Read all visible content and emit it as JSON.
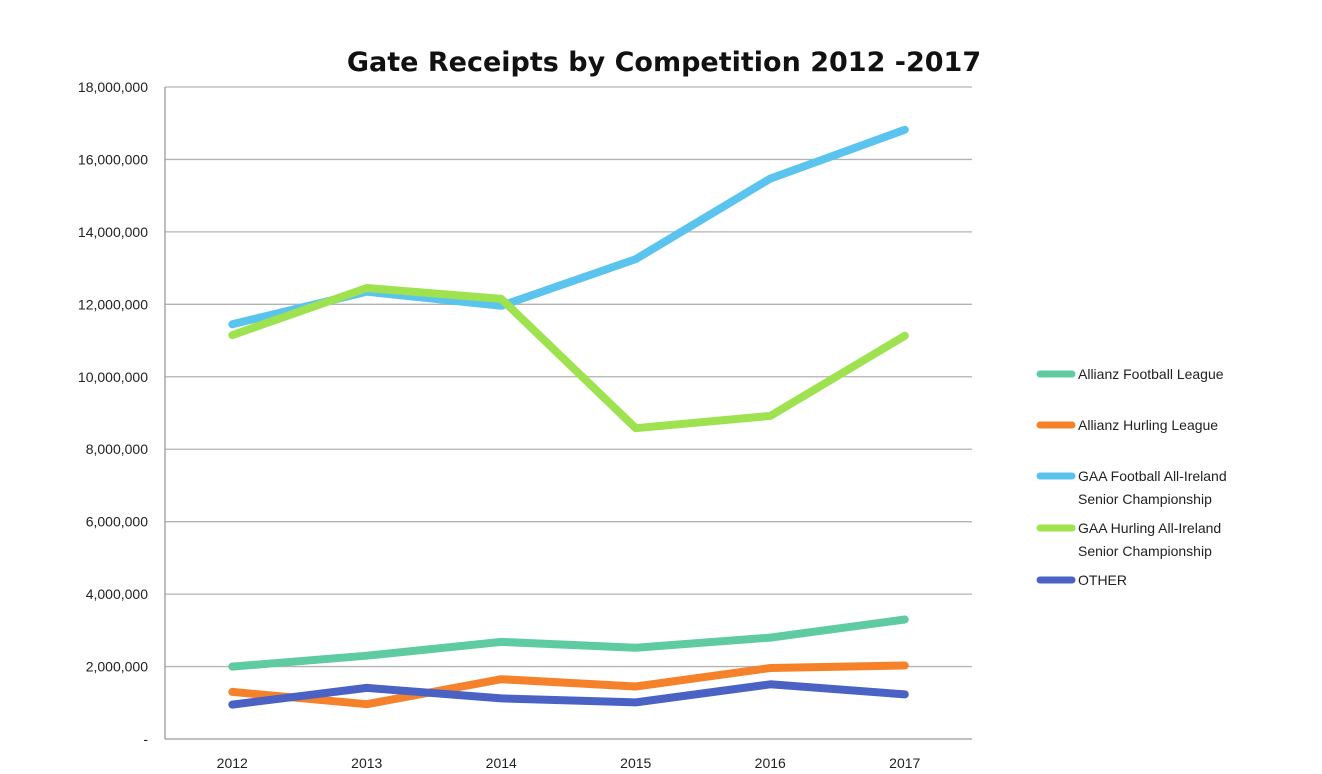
{
  "chart_data": {
    "type": "line",
    "title": "Gate Receipts by Competition 2012 -2017",
    "xlabel": "",
    "ylabel": "",
    "categories": [
      "2012",
      "2013",
      "2014",
      "2015",
      "2016",
      "2017"
    ],
    "ylim": [
      0,
      18000000
    ],
    "yticks": [
      {
        "value": 0,
        "label": "-"
      },
      {
        "value": 2000000,
        "label": "2,000,000"
      },
      {
        "value": 4000000,
        "label": "4,000,000"
      },
      {
        "value": 6000000,
        "label": "6,000,000"
      },
      {
        "value": 8000000,
        "label": "8,000,000"
      },
      {
        "value": 10000000,
        "label": "10,000,000"
      },
      {
        "value": 12000000,
        "label": "12,000,000"
      },
      {
        "value": 14000000,
        "label": "14,000,000"
      },
      {
        "value": 16000000,
        "label": "16,000,000"
      },
      {
        "value": 18000000,
        "label": "18,000,000"
      }
    ],
    "grid": true,
    "legend_position": "right",
    "series": [
      {
        "name": "Allianz Football League",
        "color": "#5ecba1",
        "values": [
          2000000,
          2300000,
          2680000,
          2520000,
          2800000,
          3300000
        ]
      },
      {
        "name": "Allianz Hurling League",
        "color": "#f5822a",
        "values": [
          1300000,
          960000,
          1650000,
          1450000,
          1960000,
          2030000
        ]
      },
      {
        "name": "GAA Football All-Ireland Senior Championship",
        "color": "#5bc4ee",
        "legend_lines": [
          "GAA Football All-Ireland",
          "Senior Championship"
        ],
        "values": [
          11450000,
          12350000,
          11960000,
          13250000,
          15470000,
          16820000
        ]
      },
      {
        "name": "GAA Hurling All-Ireland Senior Championship",
        "color": "#9ee24f",
        "legend_lines": [
          "GAA Hurling All-Ireland",
          "Senior Championship"
        ],
        "values": [
          11150000,
          12450000,
          12150000,
          8580000,
          8920000,
          11130000
        ]
      },
      {
        "name": "OTHER",
        "color": "#4a62c4",
        "values": [
          950000,
          1410000,
          1120000,
          1010000,
          1510000,
          1230000
        ]
      }
    ]
  }
}
